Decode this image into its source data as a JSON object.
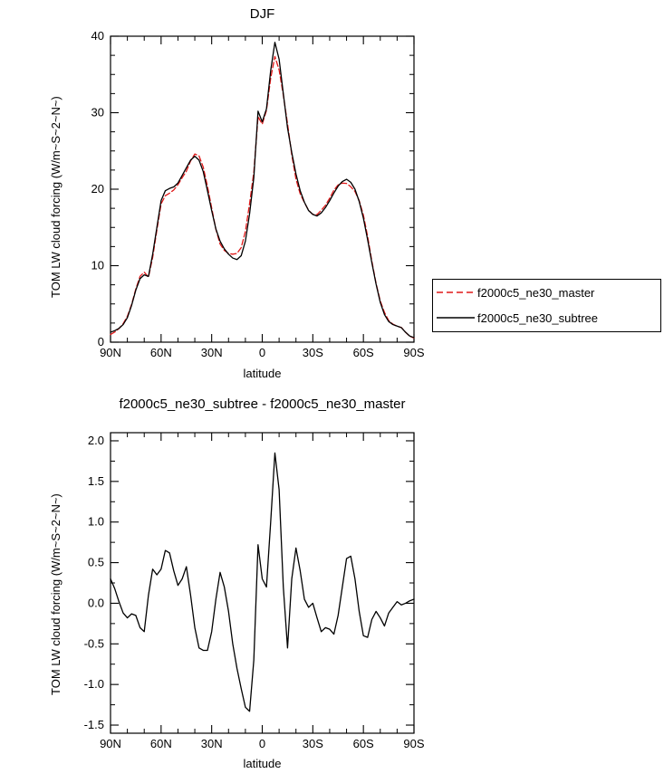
{
  "colors": {
    "master": "#e01818",
    "subtree": "#000000",
    "axis": "#000000"
  },
  "legend": {
    "items": [
      {
        "label": "f2000c5_ne30_master",
        "color": "#e01818",
        "style": "dashed"
      },
      {
        "label": "f2000c5_ne30_subtree",
        "color": "#000000",
        "style": "solid"
      }
    ]
  },
  "chart_data": [
    {
      "type": "line",
      "title": "DJF",
      "xlabel": "latitude",
      "ylabel": "TOM LW cloud forcing (W/m~S~2~N~)",
      "xlim": [
        90,
        -90
      ],
      "ylim": [
        0,
        40
      ],
      "xticks": [
        90,
        60,
        30,
        0,
        -30,
        -60,
        -90
      ],
      "xtick_labels": [
        "90N",
        "60N",
        "30N",
        "0",
        "30S",
        "60S",
        "90S"
      ],
      "x_minor_step": 10,
      "yticks": [
        0,
        10,
        20,
        30,
        40
      ],
      "ytick_labels": [
        "0",
        "10",
        "20",
        "30",
        "40"
      ],
      "y_minor_step": 2.5,
      "legend_position": "right",
      "grid": false,
      "x": [
        90,
        87.5,
        85,
        82.5,
        80,
        77.5,
        75,
        72.5,
        70,
        67.5,
        65,
        62.5,
        60,
        57.5,
        55,
        52.5,
        50,
        47.5,
        45,
        42.5,
        40,
        37.5,
        35,
        32.5,
        30,
        27.5,
        25,
        22.5,
        20,
        17.5,
        15,
        12.5,
        10,
        7.5,
        5,
        2.5,
        0,
        -2.5,
        -5,
        -7.5,
        -10,
        -12.5,
        -15,
        -17.5,
        -20,
        -22.5,
        -25,
        -27.5,
        -30,
        -32.5,
        -35,
        -37.5,
        -40,
        -42.5,
        -45,
        -47.5,
        -50,
        -52.5,
        -55,
        -57.5,
        -60,
        -62.5,
        -65,
        -67.5,
        -70,
        -72.5,
        -75,
        -77.5,
        -80,
        -82.5,
        -85,
        -87.5,
        -90
      ],
      "series": [
        {
          "name": "f2000c5_ne30_master",
          "color": "#e01818",
          "dash": "6,3",
          "values": [
            1.0,
            1.32,
            1.78,
            2.42,
            3.38,
            4.93,
            6.95,
            8.6,
            9.15,
            8.5,
            11.08,
            14.65,
            18.08,
            19.15,
            19.48,
            19.9,
            20.58,
            21.5,
            22.35,
            23.7,
            24.6,
            24.35,
            22.88,
            20.38,
            17.55,
            14.75,
            12.82,
            12.0,
            11.6,
            11.5,
            11.6,
            12.35,
            14.48,
            18.13,
            22.2,
            29.48,
            28.5,
            30.3,
            34.5,
            37.35,
            35.6,
            32.3,
            28.55,
            24.5,
            21.32,
            19.4,
            18.25,
            17.25,
            16.7,
            16.68,
            17.25,
            17.9,
            18.82,
            19.88,
            20.55,
            20.8,
            20.75,
            20.32,
            19.7,
            18.5,
            16.6,
            13.82,
            10.6,
            7.7,
            5.38,
            3.88,
            2.82,
            2.35,
            2.08,
            1.92,
            1.3,
            0.77,
            0.55
          ]
        },
        {
          "name": "f2000c5_ne30_subtree",
          "color": "#000000",
          "dash": "",
          "values": [
            1.3,
            1.5,
            1.8,
            2.3,
            3.2,
            4.8,
            6.8,
            8.3,
            8.8,
            8.6,
            11.5,
            15.0,
            18.5,
            19.8,
            20.1,
            20.3,
            20.8,
            21.8,
            22.8,
            23.8,
            24.3,
            23.8,
            22.3,
            19.8,
            17.2,
            14.8,
            13.2,
            12.2,
            11.5,
            11.0,
            10.8,
            11.3,
            13.2,
            16.8,
            21.5,
            30.2,
            28.8,
            30.5,
            35.5,
            39.2,
            37.0,
            32.5,
            28.0,
            24.8,
            22.0,
            19.8,
            18.3,
            17.2,
            16.7,
            16.5,
            16.9,
            17.6,
            18.5,
            19.5,
            20.4,
            21.0,
            21.3,
            20.9,
            20.0,
            18.4,
            16.2,
            13.4,
            10.4,
            7.6,
            5.2,
            3.6,
            2.7,
            2.3,
            2.1,
            1.9,
            1.3,
            0.8,
            0.6
          ]
        }
      ]
    },
    {
      "type": "line",
      "title": "f2000c5_ne30_subtree - f2000c5_ne30_master",
      "xlabel": "latitude",
      "ylabel": "TOM LW cloud forcing (W/m~S~2~N~)",
      "xlim": [
        90,
        -90
      ],
      "ylim": [
        -1.6,
        2.1
      ],
      "xticks": [
        90,
        60,
        30,
        0,
        -30,
        -60,
        -90
      ],
      "xtick_labels": [
        "90N",
        "60N",
        "30N",
        "0",
        "30S",
        "60S",
        "90S"
      ],
      "x_minor_step": 10,
      "yticks": [
        -1.5,
        -1.0,
        -0.5,
        0.0,
        0.5,
        1.0,
        1.5,
        2.0
      ],
      "ytick_labels": [
        "-1.5",
        "-1.0",
        "-0.5",
        "0.0",
        "0.5",
        "1.0",
        "1.5",
        "2.0"
      ],
      "y_minor_step": 0.25,
      "legend_position": "none",
      "grid": false,
      "x": [
        90,
        87.5,
        85,
        82.5,
        80,
        77.5,
        75,
        72.5,
        70,
        67.5,
        65,
        62.5,
        60,
        57.5,
        55,
        52.5,
        50,
        47.5,
        45,
        42.5,
        40,
        37.5,
        35,
        32.5,
        30,
        27.5,
        25,
        22.5,
        20,
        17.5,
        15,
        12.5,
        10,
        7.5,
        5,
        2.5,
        0,
        -2.5,
        -5,
        -7.5,
        -10,
        -12.5,
        -15,
        -17.5,
        -20,
        -22.5,
        -25,
        -27.5,
        -30,
        -32.5,
        -35,
        -37.5,
        -40,
        -42.5,
        -45,
        -47.5,
        -50,
        -52.5,
        -55,
        -57.5,
        -60,
        -62.5,
        -65,
        -67.5,
        -70,
        -72.5,
        -75,
        -77.5,
        -80,
        -82.5,
        -85,
        -87.5,
        -90
      ],
      "series": [
        {
          "name": "f2000c5_ne30_subtree - f2000c5_ne30_master",
          "color": "#000000",
          "dash": "",
          "values": [
            0.3,
            0.18,
            0.02,
            -0.12,
            -0.18,
            -0.13,
            -0.15,
            -0.3,
            -0.35,
            0.1,
            0.42,
            0.35,
            0.42,
            0.65,
            0.62,
            0.4,
            0.22,
            0.3,
            0.45,
            0.1,
            -0.3,
            -0.55,
            -0.58,
            -0.58,
            -0.35,
            0.05,
            0.38,
            0.2,
            -0.1,
            -0.5,
            -0.8,
            -1.05,
            -1.28,
            -1.33,
            -0.7,
            0.72,
            0.3,
            0.2,
            1.0,
            1.85,
            1.4,
            0.2,
            -0.55,
            0.3,
            0.68,
            0.4,
            0.05,
            -0.05,
            0.0,
            -0.18,
            -0.35,
            -0.3,
            -0.32,
            -0.38,
            -0.15,
            0.2,
            0.55,
            0.58,
            0.3,
            -0.1,
            -0.4,
            -0.42,
            -0.2,
            -0.1,
            -0.18,
            -0.28,
            -0.12,
            -0.05,
            0.02,
            -0.02,
            0.0,
            0.03,
            0.05
          ]
        }
      ]
    }
  ]
}
